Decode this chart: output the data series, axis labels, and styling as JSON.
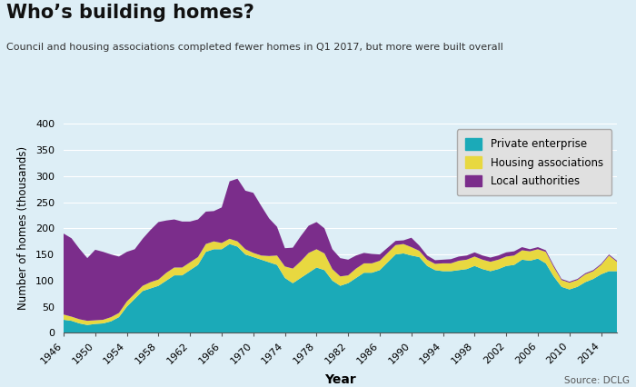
{
  "title": "Who’s building homes?",
  "subtitle": "Council and housing associations completed fewer homes in Q1 2017, but more were built overall",
  "xlabel": "Year",
  "ylabel": "Number of homes (thousands)",
  "source": "Source: DCLG",
  "background_color": "#ddeef6",
  "plot_background_color": "#ddeef6",
  "legend_background_color": "#e0e0e0",
  "colors": {
    "private": "#1BAAB8",
    "housing": "#E8D840",
    "local": "#7B2D8B"
  },
  "legend_labels": [
    "Private enterprise",
    "Housing associations",
    "Local authorities"
  ],
  "years": [
    1946,
    1947,
    1948,
    1949,
    1950,
    1951,
    1952,
    1953,
    1954,
    1955,
    1956,
    1957,
    1958,
    1959,
    1960,
    1961,
    1962,
    1963,
    1964,
    1965,
    1966,
    1967,
    1968,
    1969,
    1970,
    1971,
    1972,
    1973,
    1974,
    1975,
    1976,
    1977,
    1978,
    1979,
    1980,
    1981,
    1982,
    1983,
    1984,
    1985,
    1986,
    1987,
    1988,
    1989,
    1990,
    1991,
    1992,
    1993,
    1994,
    1995,
    1996,
    1997,
    1998,
    1999,
    2000,
    2001,
    2002,
    2003,
    2004,
    2005,
    2006,
    2007,
    2008,
    2009,
    2010,
    2011,
    2012,
    2013,
    2014,
    2015,
    2016
  ],
  "private": [
    25,
    23,
    18,
    15,
    17,
    18,
    22,
    30,
    50,
    65,
    80,
    85,
    90,
    100,
    110,
    110,
    120,
    130,
    155,
    160,
    160,
    170,
    165,
    150,
    145,
    140,
    135,
    130,
    105,
    95,
    105,
    115,
    125,
    120,
    100,
    90,
    95,
    105,
    115,
    115,
    120,
    135,
    150,
    152,
    148,
    145,
    128,
    120,
    118,
    118,
    120,
    122,
    128,
    122,
    118,
    122,
    128,
    130,
    140,
    138,
    142,
    133,
    108,
    88,
    83,
    88,
    97,
    103,
    112,
    118,
    118
  ],
  "housing": [
    10,
    8,
    8,
    8,
    7,
    7,
    8,
    8,
    10,
    10,
    10,
    12,
    12,
    15,
    15,
    15,
    15,
    15,
    15,
    15,
    12,
    10,
    10,
    10,
    8,
    8,
    12,
    18,
    22,
    28,
    32,
    38,
    35,
    32,
    22,
    18,
    15,
    18,
    18,
    18,
    18,
    18,
    18,
    18,
    16,
    12,
    12,
    12,
    15,
    15,
    18,
    18,
    18,
    18,
    18,
    18,
    18,
    18,
    18,
    18,
    18,
    22,
    18,
    13,
    13,
    13,
    15,
    15,
    18,
    30,
    18
  ],
  "local": [
    155,
    150,
    135,
    120,
    135,
    130,
    120,
    108,
    95,
    85,
    90,
    100,
    110,
    100,
    92,
    88,
    78,
    72,
    62,
    58,
    68,
    110,
    120,
    112,
    115,
    95,
    72,
    55,
    35,
    40,
    48,
    52,
    52,
    48,
    38,
    35,
    30,
    25,
    20,
    18,
    12,
    10,
    8,
    7,
    18,
    10,
    8,
    7,
    7,
    8,
    8,
    8,
    8,
    8,
    8,
    8,
    8,
    8,
    6,
    4,
    4,
    3,
    3,
    2,
    2,
    2,
    2,
    2,
    2,
    2,
    2
  ]
}
